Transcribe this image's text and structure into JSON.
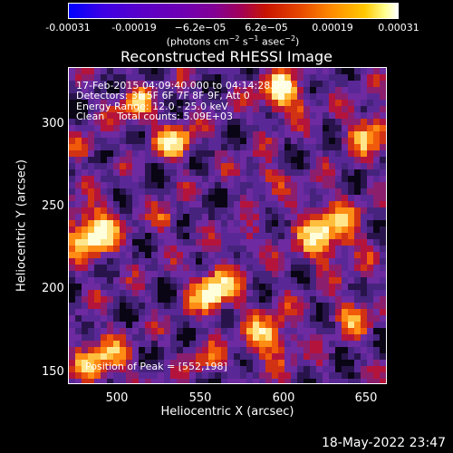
{
  "colorbar": {
    "ticks": [
      "-0.00031",
      "-0.00019",
      "−6.2e−05",
      "6.2e−05",
      "0.00019",
      "0.00031"
    ],
    "unit_main": "(photons cm",
    "unit_sup1": "−2",
    "unit_s": " s",
    "unit_sup2": "−1",
    "unit_asec": " asec",
    "unit_sup3": "−2",
    "unit_close": ")"
  },
  "title": "Reconstructed RHESSI Image",
  "info": {
    "time": "17-Feb-2015 04:09:40.000 to 04:14:28.000",
    "detectors": "Detectors: 3F 5F 6F 7F 8F 9F, Att 0",
    "energy": "Energy Range: 12.0 - 25.0 keV",
    "clean": "Clean    Total counts: 5.09E+03",
    "peak": "Position of Peak = [552,198]"
  },
  "axes": {
    "xlabel": "Heliocentric X (arcsec)",
    "ylabel": "Heliocentric Y (arcsec)",
    "xticks": [
      "500",
      "550",
      "600",
      "650"
    ],
    "yticks": [
      "300",
      "250",
      "200",
      "150"
    ]
  },
  "footer": "18-May-2022 23:47"
}
